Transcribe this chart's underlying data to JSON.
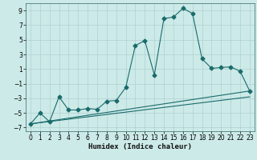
{
  "title": "",
  "xlabel": "Humidex (Indice chaleur)",
  "ylabel": "",
  "background_color": "#cceae8",
  "grid_color": "#b0d0d0",
  "line_color": "#1a6b6b",
  "xlim": [
    -0.5,
    23.5
  ],
  "ylim": [
    -7.5,
    10.0
  ],
  "xticks": [
    0,
    1,
    2,
    3,
    4,
    5,
    6,
    7,
    8,
    9,
    10,
    11,
    12,
    13,
    14,
    15,
    16,
    17,
    18,
    19,
    20,
    21,
    22,
    23
  ],
  "yticks": [
    -7,
    -5,
    -3,
    -1,
    1,
    3,
    5,
    7,
    9
  ],
  "series1_x": [
    0,
    1,
    2,
    3,
    4,
    5,
    6,
    7,
    8,
    9,
    10,
    11,
    12,
    13,
    14,
    15,
    16,
    17,
    18,
    19,
    20,
    21,
    22,
    23
  ],
  "series1_y": [
    -6.5,
    -5.0,
    -6.2,
    -2.8,
    -4.6,
    -4.6,
    -4.4,
    -4.5,
    -3.4,
    -3.3,
    -1.5,
    4.2,
    4.9,
    0.2,
    7.9,
    8.1,
    9.3,
    8.6,
    2.4,
    1.1,
    1.2,
    1.3,
    0.7,
    -2.0
  ],
  "series2_x": [
    0,
    23
  ],
  "series2_y": [
    -6.5,
    -2.0
  ],
  "series3_x": [
    0,
    23
  ],
  "series3_y": [
    -6.5,
    -2.8
  ],
  "marker": "D",
  "marker_size": 2.5,
  "line_width": 0.8
}
